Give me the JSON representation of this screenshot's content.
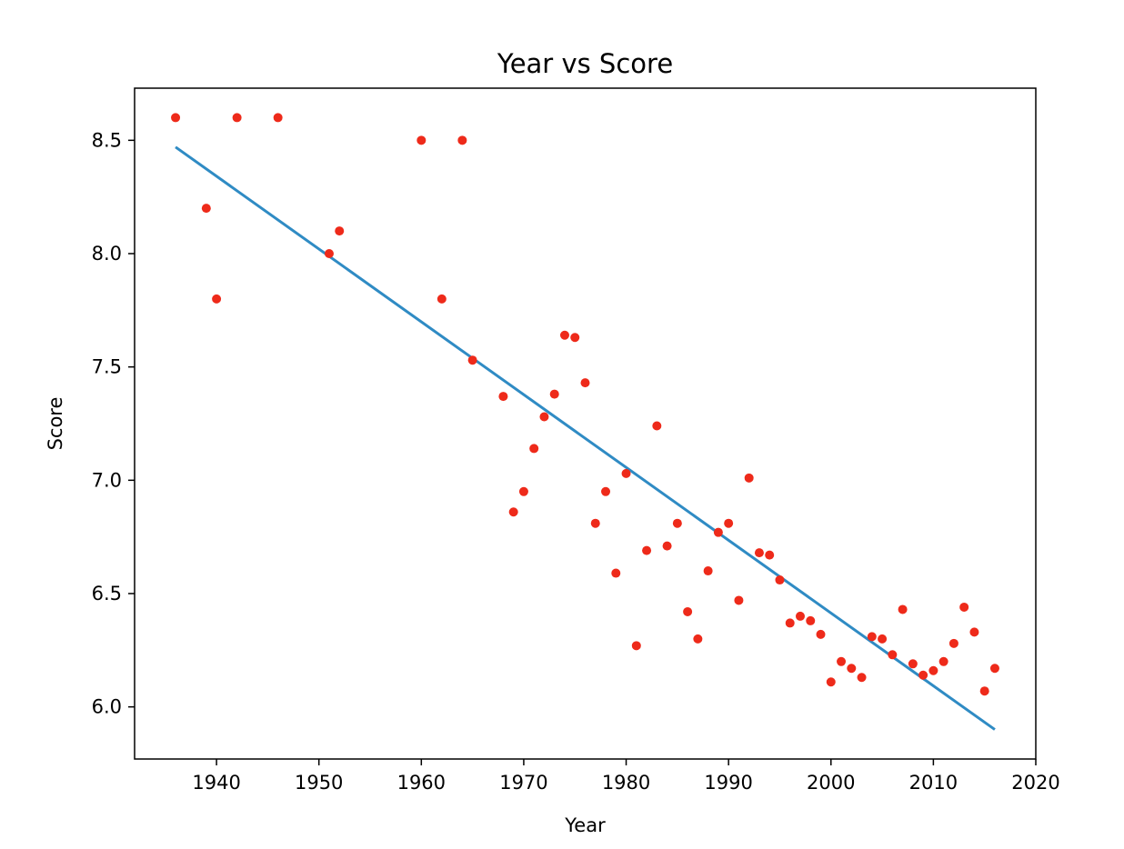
{
  "chart_data": {
    "type": "scatter",
    "title": "Year vs Score",
    "xlabel": "Year",
    "ylabel": "Score",
    "xlim": [
      1932,
      2020
    ],
    "ylim": [
      5.77,
      8.73
    ],
    "xticks": [
      1940,
      1950,
      1960,
      1970,
      1980,
      1990,
      2000,
      2010,
      2020
    ],
    "xtick_labels": [
      "1940",
      "1950",
      "1960",
      "1970",
      "1980",
      "1990",
      "2000",
      "2010",
      "2020"
    ],
    "yticks": [
      6.0,
      6.5,
      7.0,
      7.5,
      8.0,
      8.5
    ],
    "ytick_labels": [
      "6.0",
      "6.5",
      "7.0",
      "7.5",
      "8.0",
      "8.5"
    ],
    "grid": false,
    "colors": {
      "points": "#ee2a1a",
      "trend": "#2f8bc4"
    },
    "points": [
      [
        1936,
        8.6
      ],
      [
        1939,
        8.2
      ],
      [
        1940,
        7.8
      ],
      [
        1942,
        8.6
      ],
      [
        1946,
        8.6
      ],
      [
        1951,
        8.0
      ],
      [
        1952,
        8.1
      ],
      [
        1960,
        8.5
      ],
      [
        1962,
        7.8
      ],
      [
        1964,
        8.5
      ],
      [
        1965,
        7.53
      ],
      [
        1968,
        7.37
      ],
      [
        1969,
        6.86
      ],
      [
        1970,
        6.95
      ],
      [
        1971,
        7.14
      ],
      [
        1972,
        7.28
      ],
      [
        1973,
        7.38
      ],
      [
        1974,
        7.64
      ],
      [
        1975,
        7.63
      ],
      [
        1976,
        7.43
      ],
      [
        1977,
        6.81
      ],
      [
        1978,
        6.95
      ],
      [
        1979,
        6.59
      ],
      [
        1980,
        7.03
      ],
      [
        1981,
        6.27
      ],
      [
        1982,
        6.69
      ],
      [
        1983,
        7.24
      ],
      [
        1984,
        6.71
      ],
      [
        1985,
        6.81
      ],
      [
        1986,
        6.42
      ],
      [
        1987,
        6.3
      ],
      [
        1988,
        6.6
      ],
      [
        1989,
        6.77
      ],
      [
        1990,
        6.81
      ],
      [
        1991,
        6.47
      ],
      [
        1992,
        7.01
      ],
      [
        1993,
        6.68
      ],
      [
        1994,
        6.67
      ],
      [
        1995,
        6.56
      ],
      [
        1996,
        6.37
      ],
      [
        1997,
        6.4
      ],
      [
        1998,
        6.38
      ],
      [
        1999,
        6.32
      ],
      [
        2000,
        6.11
      ],
      [
        2001,
        6.2
      ],
      [
        2002,
        6.17
      ],
      [
        2003,
        6.13
      ],
      [
        2004,
        6.31
      ],
      [
        2005,
        6.3
      ],
      [
        2006,
        6.23
      ],
      [
        2007,
        6.43
      ],
      [
        2008,
        6.19
      ],
      [
        2009,
        6.14
      ],
      [
        2010,
        6.16
      ],
      [
        2011,
        6.2
      ],
      [
        2012,
        6.28
      ],
      [
        2013,
        6.44
      ],
      [
        2014,
        6.33
      ],
      [
        2015,
        6.07
      ],
      [
        2016,
        6.17
      ]
    ],
    "trend_line": {
      "x": [
        1936,
        2016
      ],
      "y": [
        8.47,
        5.9
      ]
    }
  }
}
